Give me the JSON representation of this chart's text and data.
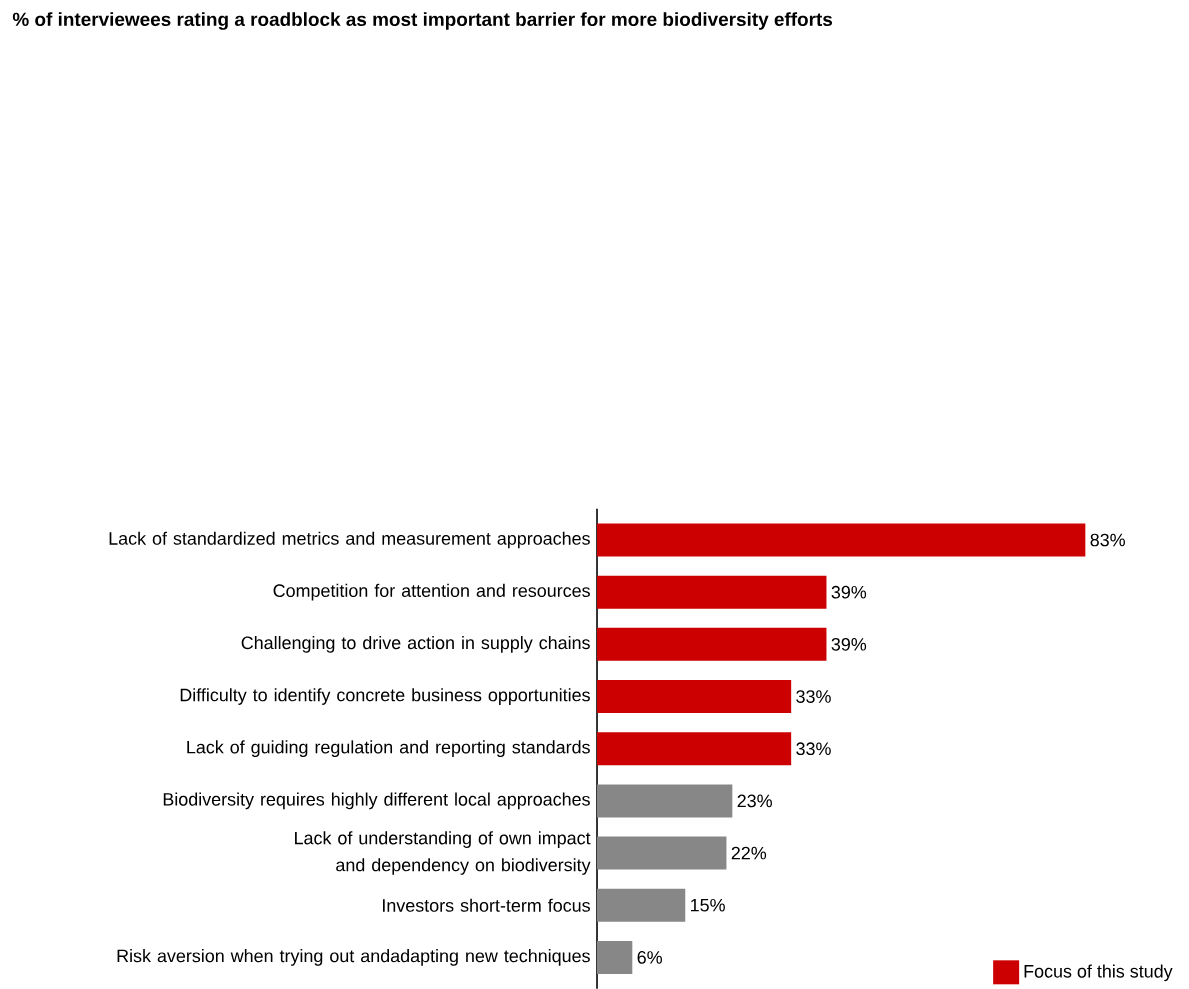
{
  "chart_data": {
    "type": "bar",
    "orientation": "horizontal",
    "stacked": true,
    "legend": "bottom right",
    "title": "% of interviewees rating a roadblock as most important barrier for more biodiversity efforts",
    "categories": [
      "Lack of standardized metrics and measurement approaches",
      "Competition for attention and resources",
      "Challenging to drive action in supply chains",
      "Difficulty to identify concrete business opportunities",
      "Lack of guiding regulation and reporting standards",
      "Biodiversity requires highly different local approaches",
      "Lack of understanding of own impact and dependency on biodiversity",
      "Investors short-term focus",
      "Risk aversion when trying out andadapting new techniques"
    ],
    "series": [
      {
        "name": "Focus of this study",
        "color": "#cc0000",
        "values": [
          83,
          39,
          39,
          33,
          33,
          null,
          null,
          null,
          null
        ],
        "value_labels": [
          "83%",
          "39%",
          "39%",
          "33%",
          "33%",
          null,
          null,
          null,
          null
        ]
      },
      {
        "color": "#878787",
        "values": [
          null,
          null,
          null,
          null,
          null,
          23,
          22,
          15,
          6
        ],
        "value_labels": [
          null,
          null,
          null,
          null,
          null,
          "23%",
          "22%",
          "15%",
          "6%"
        ]
      }
    ]
  }
}
